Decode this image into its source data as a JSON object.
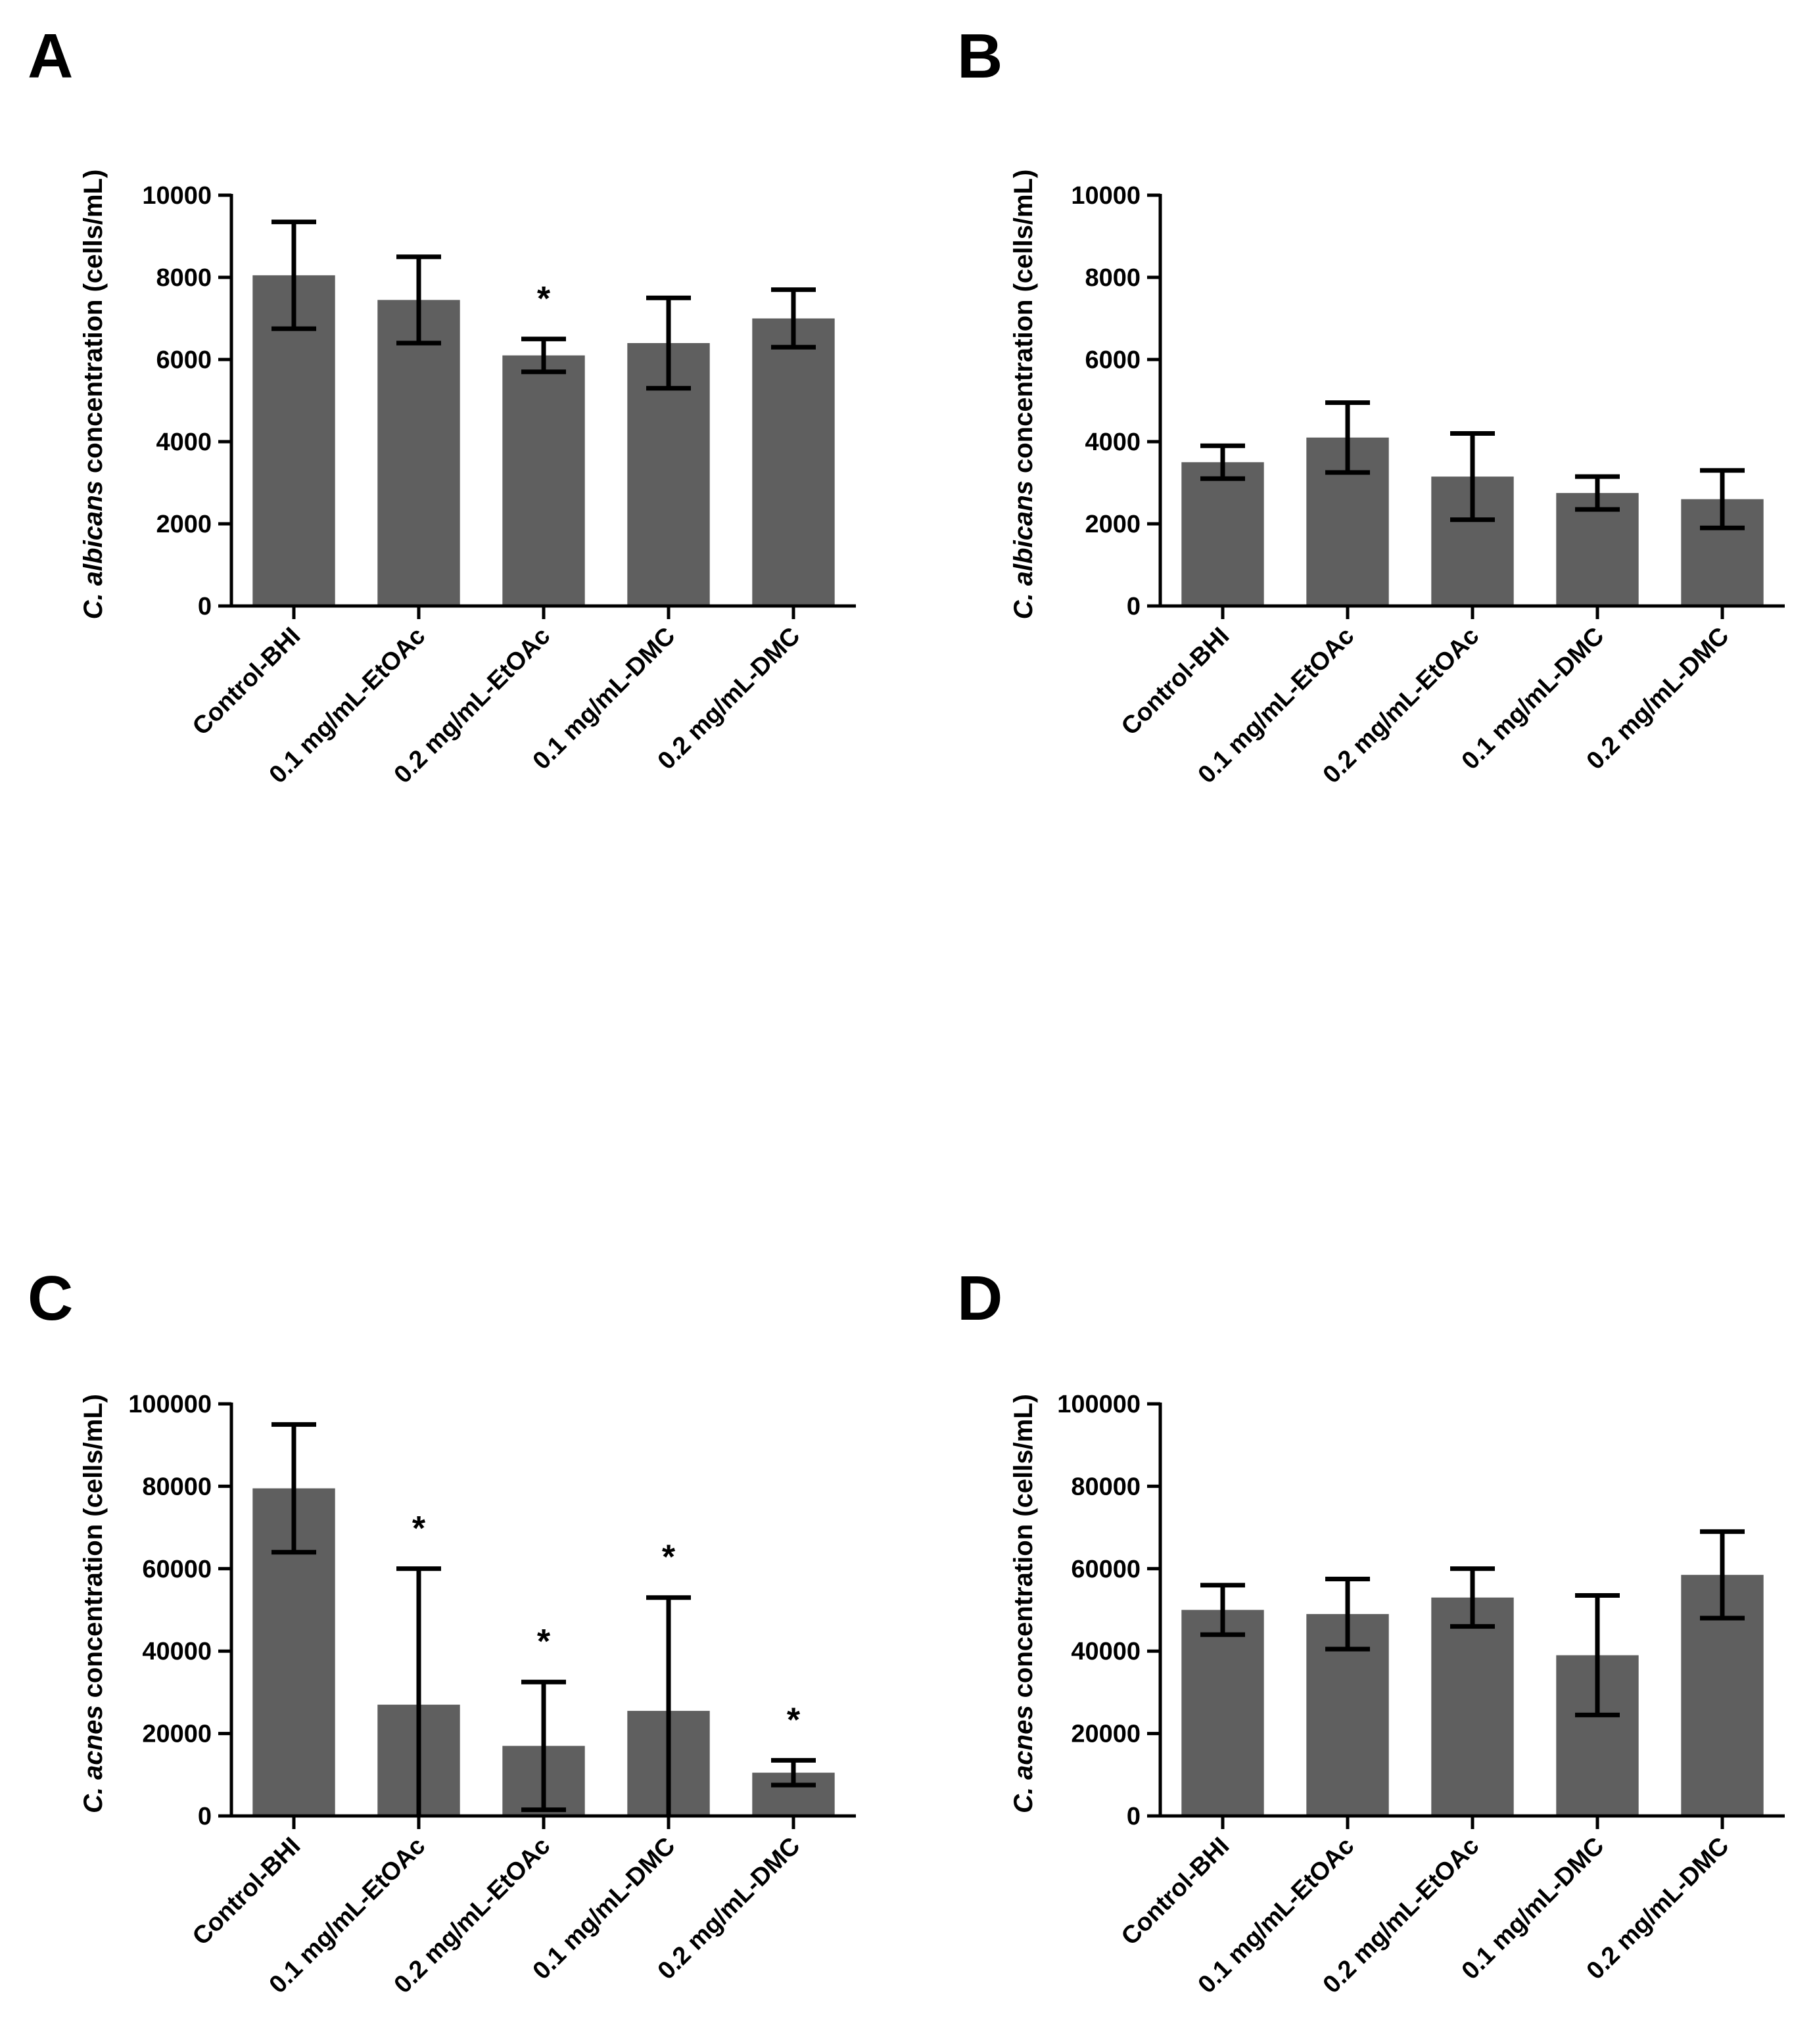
{
  "chart_data": [
    {
      "panel": "A",
      "type": "bar",
      "organism_italic": "C. albicans",
      "ylabel_suffix": " concentration (cells/mL)",
      "categories": [
        "Control-BHI",
        "0.1 mg/mL-EtOAc",
        "0.2 mg/mL-EtOAc",
        "0.1 mg/mL-DMC",
        "0.2 mg/mL-DMC"
      ],
      "values": [
        8050,
        7450,
        6100,
        6400,
        7000
      ],
      "errors": [
        1300,
        1050,
        400,
        1100,
        700
      ],
      "significance": [
        "",
        "",
        "*",
        "",
        ""
      ],
      "ylim": [
        0,
        10000
      ],
      "yticks": [
        "0",
        "2000",
        "4000",
        "6000",
        "8000",
        "10000"
      ]
    },
    {
      "panel": "B",
      "type": "bar",
      "organism_italic": "C. albicans",
      "ylabel_suffix": " concentration (cells/mL)",
      "categories": [
        "Control-BHI",
        "0.1 mg/mL-EtOAc",
        "0.2 mg/mL-EtOAc",
        "0.1 mg/mL-DMC",
        "0.2 mg/mL-DMC"
      ],
      "values": [
        3500,
        4100,
        3150,
        2750,
        2600
      ],
      "errors": [
        400,
        850,
        1050,
        400,
        700
      ],
      "significance": [
        "",
        "",
        "",
        "",
        ""
      ],
      "ylim": [
        0,
        10000
      ],
      "yticks": [
        "0",
        "2000",
        "4000",
        "6000",
        "8000",
        "10000"
      ]
    },
    {
      "panel": "C",
      "type": "bar",
      "organism_italic": "C. acnes",
      "ylabel_suffix": " concentration (cells/mL)",
      "categories": [
        "Control-BHI",
        "0.1 mg/mL-EtOAc",
        "0.2 mg/mL-EtOAc",
        "0.1 mg/mL-DMC",
        "0.2 mg/mL-DMC"
      ],
      "values": [
        79500,
        27000,
        17000,
        25500,
        10500
      ],
      "errors": [
        15500,
        33000,
        15500,
        27500,
        3000
      ],
      "significance": [
        "",
        "*",
        "*",
        "*",
        "*"
      ],
      "ylim": [
        0,
        100000
      ],
      "yticks": [
        "0",
        "20000",
        "40000",
        "60000",
        "80000",
        "100000"
      ]
    },
    {
      "panel": "D",
      "type": "bar",
      "organism_italic": "C. acnes",
      "ylabel_suffix": " concentration (cells/mL)",
      "categories": [
        "Control-BHI",
        "0.1 mg/mL-EtOAc",
        "0.2 mg/mL-EtOAc",
        "0.1 mg/mL-DMC",
        "0.2 mg/mL-DMC"
      ],
      "values": [
        50000,
        49000,
        53000,
        39000,
        58500
      ],
      "errors": [
        6000,
        8500,
        7000,
        14500,
        10500
      ],
      "significance": [
        "",
        "",
        "",
        "",
        ""
      ],
      "ylim": [
        0,
        100000
      ],
      "yticks": [
        "0",
        "20000",
        "40000",
        "60000",
        "80000",
        "100000"
      ]
    }
  ]
}
